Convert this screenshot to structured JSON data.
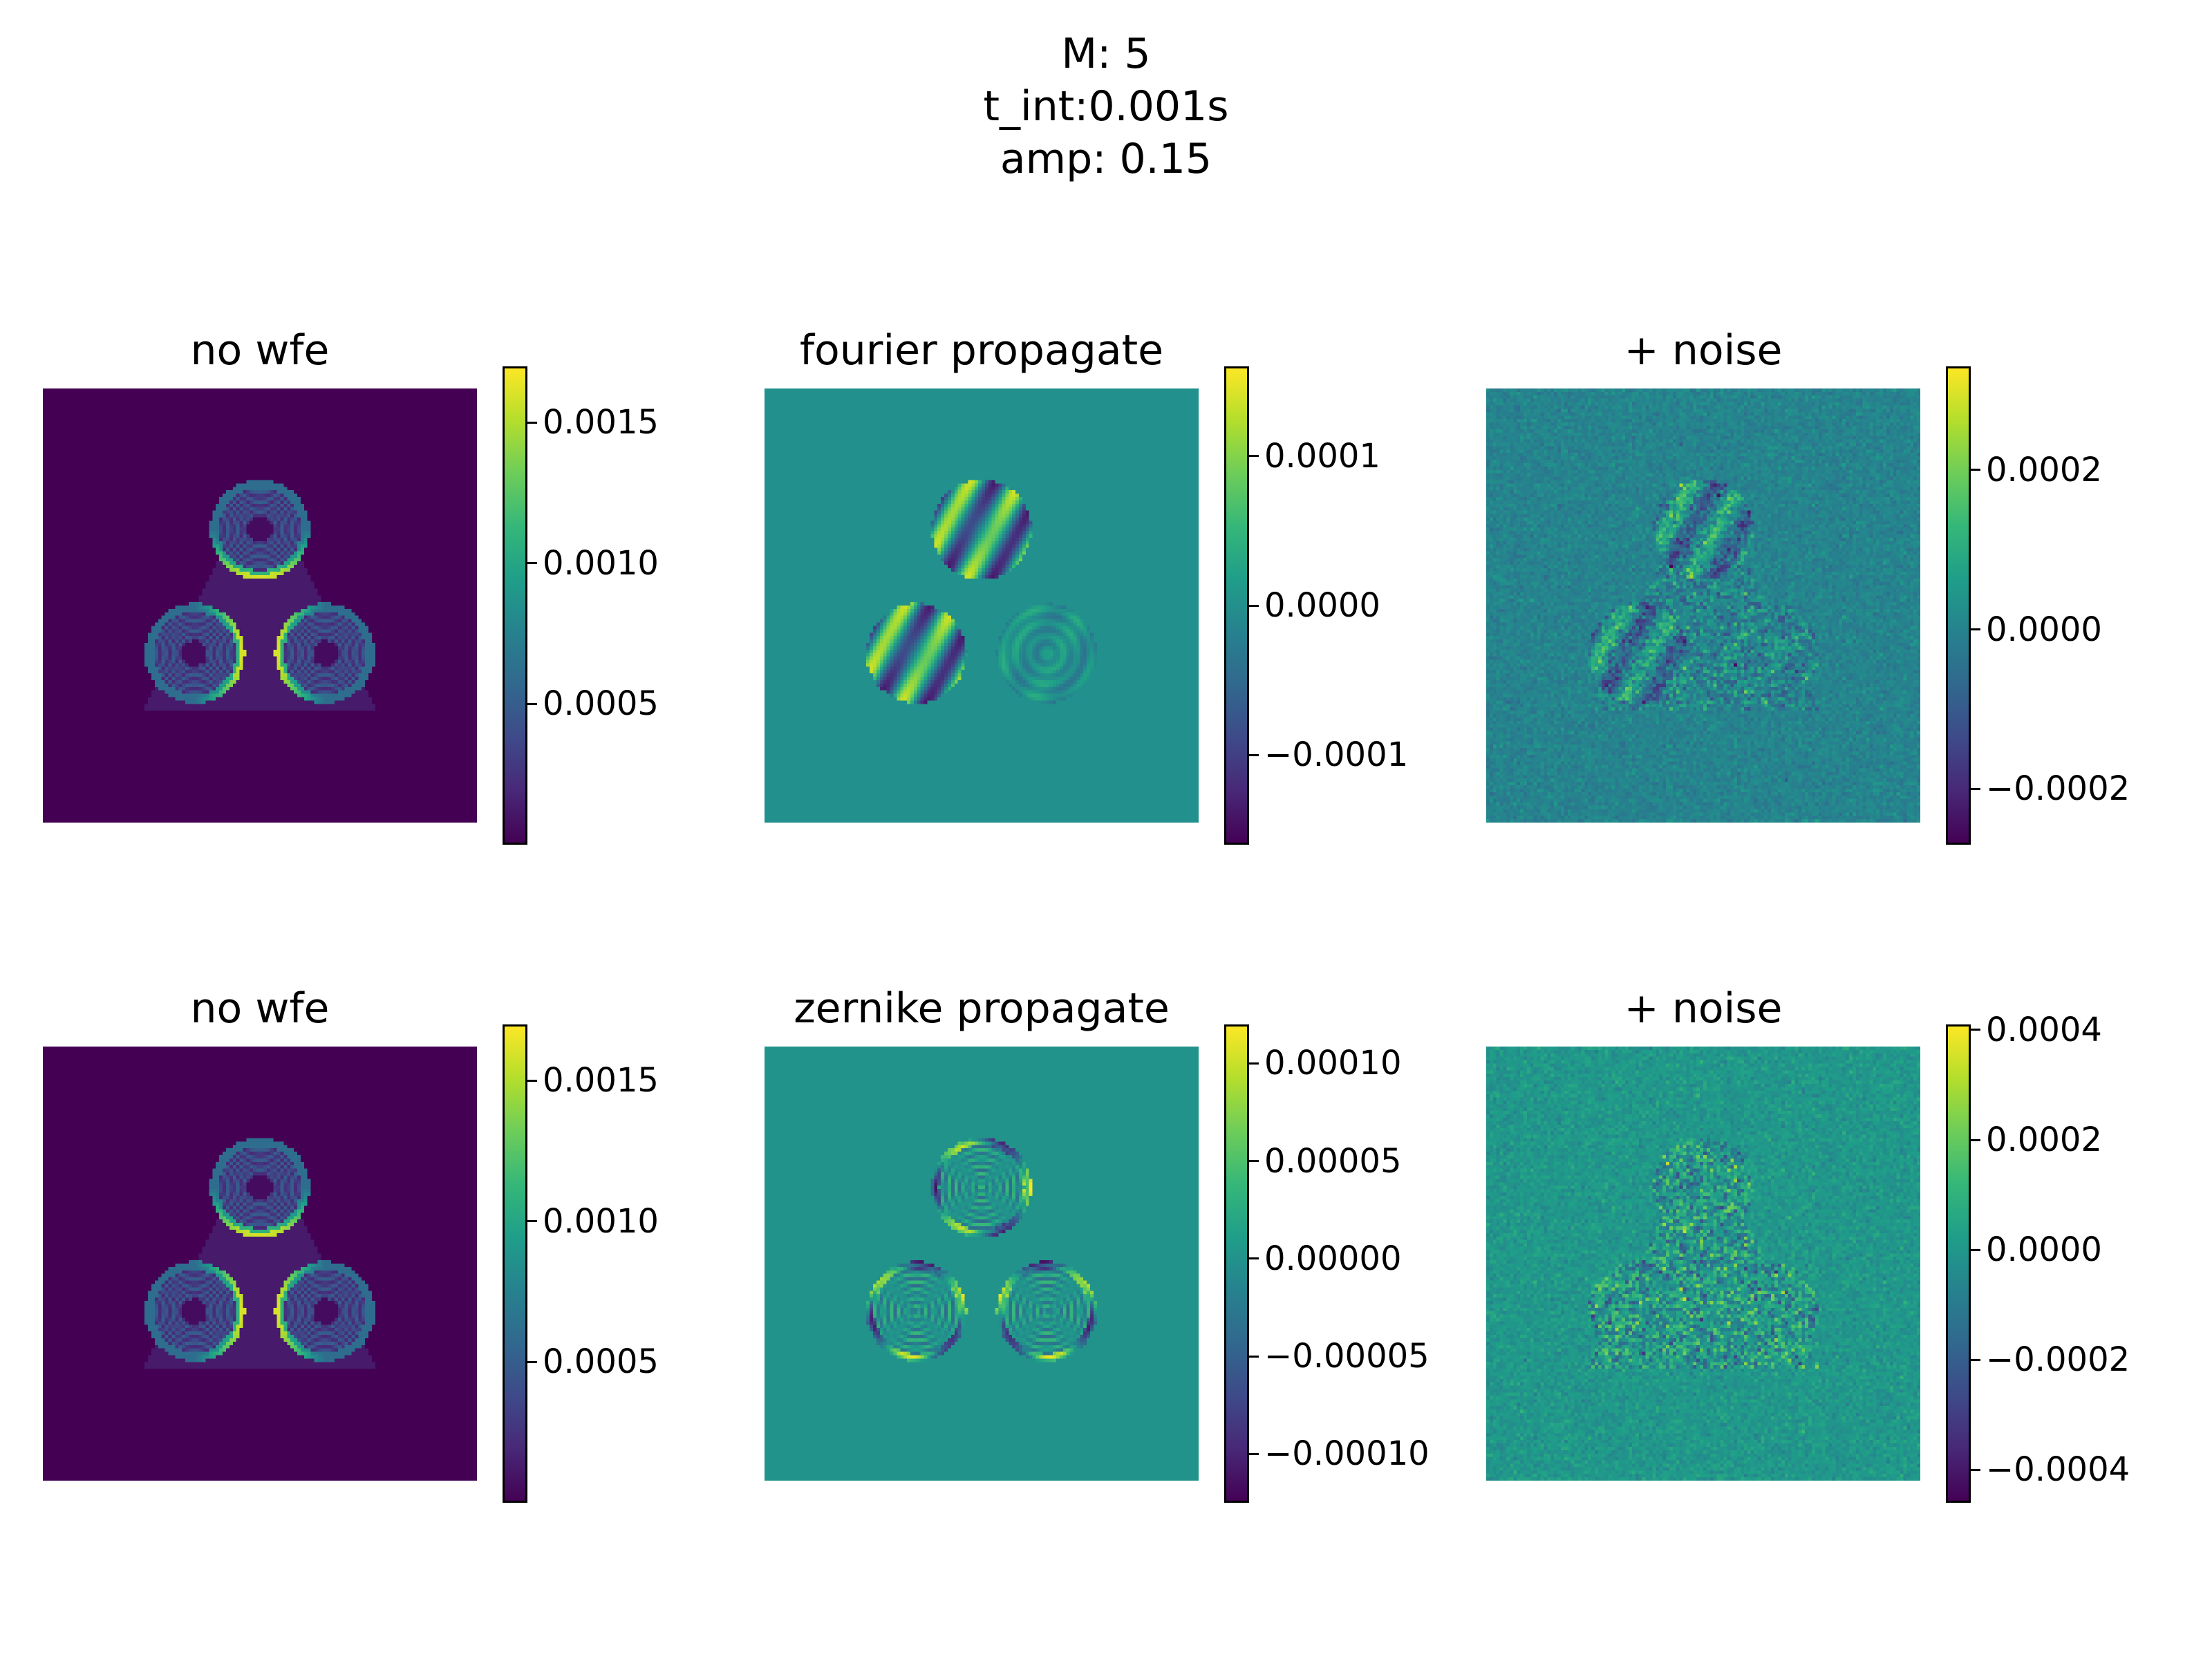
{
  "suptitle": [
    "M: 5",
    "t_int:0.001s",
    "amp: 0.15"
  ],
  "chart_data": [
    {
      "type": "heatmap",
      "title": "no wfe",
      "colormap": "viridis",
      "image": "psf",
      "vmin": 0.0,
      "vmax": 0.0017,
      "colorbar_ticks": [
        0.0005,
        0.001,
        0.0015
      ],
      "colorbar_labels": [
        "0.0005",
        "0.0010",
        "0.0015"
      ]
    },
    {
      "type": "heatmap",
      "title": "fourier propagate",
      "colormap": "viridis",
      "image": "fourier",
      "vmin": -0.00016,
      "vmax": 0.00016,
      "colorbar_ticks": [
        -0.0001,
        0.0,
        0.0001
      ],
      "colorbar_labels": [
        "−0.0001",
        "0.0000",
        "0.0001"
      ]
    },
    {
      "type": "heatmap",
      "title": "+ noise",
      "colormap": "viridis",
      "image": "noise",
      "vmin": -0.00027,
      "vmax": 0.00033,
      "colorbar_ticks": [
        -0.0002,
        0.0,
        0.0002
      ],
      "colorbar_labels": [
        "−0.0002",
        "0.0000",
        "0.0002"
      ]
    },
    {
      "type": "heatmap",
      "title": "no wfe",
      "colormap": "viridis",
      "image": "psf",
      "vmin": 0.0,
      "vmax": 0.0017,
      "colorbar_ticks": [
        0.0005,
        0.001,
        0.0015
      ],
      "colorbar_labels": [
        "0.0005",
        "0.0010",
        "0.0015"
      ]
    },
    {
      "type": "heatmap",
      "title": "zernike propagate",
      "colormap": "viridis",
      "image": "zernike",
      "vmin": -0.000125,
      "vmax": 0.00012,
      "colorbar_ticks": [
        -0.0001,
        -5e-05,
        0.0,
        5e-05,
        0.0001
      ],
      "colorbar_labels": [
        "−0.00010",
        "−0.00005",
        "0.00000",
        "0.00005",
        "0.00010"
      ]
    },
    {
      "type": "heatmap",
      "title": "+ noise",
      "colormap": "viridis",
      "image": "noise2",
      "vmin": -0.00046,
      "vmax": 0.00041,
      "colorbar_ticks": [
        -0.0004,
        -0.0002,
        0.0,
        0.0002,
        0.0004
      ],
      "colorbar_labels": [
        "−0.0004",
        "−0.0002",
        "0.0000",
        "0.0002",
        "0.0004"
      ]
    }
  ]
}
